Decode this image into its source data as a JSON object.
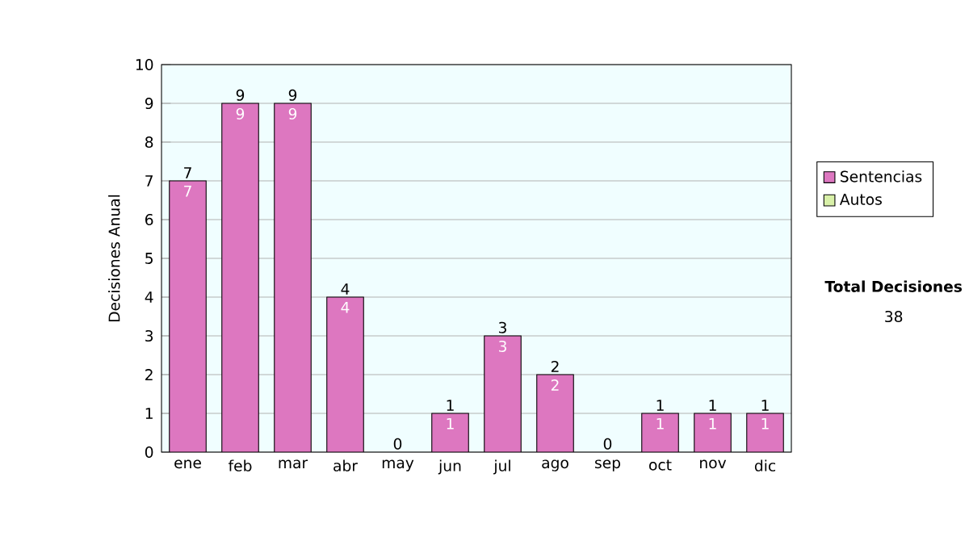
{
  "chart_data": {
    "type": "bar",
    "stacked": true,
    "ylabel": "Decisiones Anual",
    "categories": [
      "ene",
      "feb",
      "mar",
      "abr",
      "may",
      "jun",
      "jul",
      "ago",
      "sep",
      "oct",
      "nov",
      "dic"
    ],
    "series": [
      {
        "name": "Sentencias",
        "color": "#dd77c0",
        "values": [
          7,
          9,
          9,
          4,
          0,
          1,
          3,
          2,
          0,
          1,
          1,
          1
        ],
        "value_labels": [
          "7",
          "9",
          "9",
          "4",
          null,
          "1",
          "3",
          "2",
          null,
          "1",
          "1",
          "1"
        ]
      },
      {
        "name": "Autos",
        "color": "#d8f0a8",
        "values": [
          0,
          0,
          0,
          0,
          0,
          0,
          0,
          0,
          0,
          0,
          0,
          0
        ]
      }
    ],
    "totals": [
      "7",
      "9",
      "9",
      "4",
      "0",
      "1",
      "3",
      "2",
      "0",
      "1",
      "1",
      "1"
    ],
    "ylim": [
      0,
      10
    ],
    "yticks": [
      0,
      1,
      2,
      3,
      4,
      5,
      6,
      7,
      8,
      9,
      10
    ],
    "grid": "y",
    "legend": "right",
    "annotations": [
      "Total Decisiones",
      "38"
    ]
  }
}
